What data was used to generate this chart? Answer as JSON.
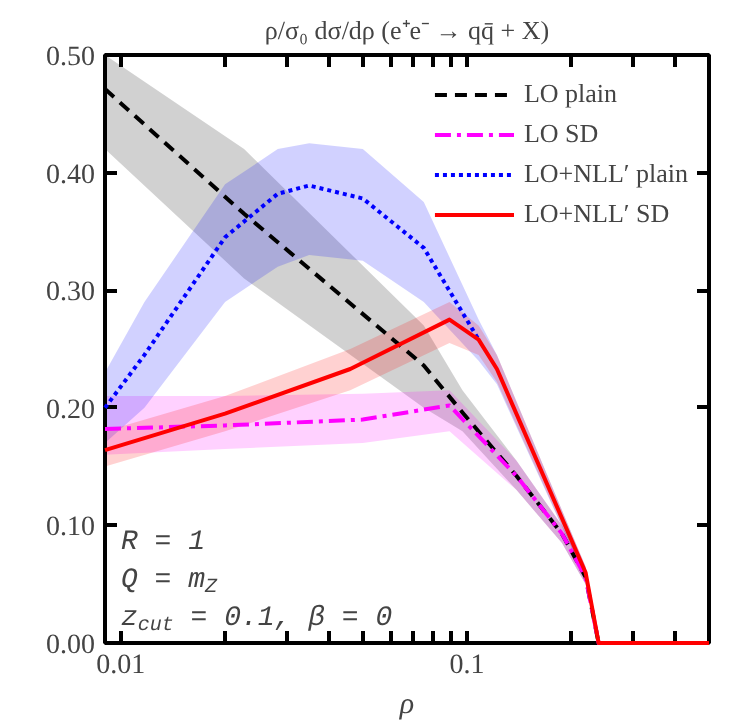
{
  "chart_data": {
    "type": "line",
    "title": "ρ/σ₀ dσ/dρ (e⁺e⁻ → qq̄ + X)",
    "xlabel": "ρ",
    "log": "x",
    "xlim": [
      0.009,
      0.5
    ],
    "ylim": [
      0,
      0.5
    ],
    "xticks": [
      {
        "value": 0.01,
        "label": "0.01"
      },
      {
        "value": 0.02,
        "label": null
      },
      {
        "value": 0.03,
        "label": null
      },
      {
        "value": 0.04,
        "label": null
      },
      {
        "value": 0.05,
        "label": null
      },
      {
        "value": 0.06,
        "label": null
      },
      {
        "value": 0.07,
        "label": null
      },
      {
        "value": 0.08,
        "label": null
      },
      {
        "value": 0.09,
        "label": null
      },
      {
        "value": 0.1,
        "label": "0.1"
      },
      {
        "value": 0.2,
        "label": null
      },
      {
        "value": 0.3,
        "label": null
      },
      {
        "value": 0.4,
        "label": null
      }
    ],
    "yticks": [
      {
        "value": 0,
        "label": "0.00"
      },
      {
        "value": 0.1,
        "label": "0.10"
      },
      {
        "value": 0.2,
        "label": "0.20"
      },
      {
        "value": 0.3,
        "label": "0.30"
      },
      {
        "value": 0.4,
        "label": "0.40"
      },
      {
        "value": 0.5,
        "label": "0.50"
      }
    ],
    "grid": false,
    "legend": "top right",
    "marker": "none",
    "annotations": [
      "R = 1",
      "Q = m$_{Z}$",
      "z$_{cut}$ = 0.1, β = 0"
    ],
    "series": [
      {
        "name": "LO plain",
        "color": "#000000",
        "line_style": "dashed",
        "x": [
          0.009,
          0.0227,
          0.075,
          0.097,
          0.139,
          0.188,
          0.22,
          0.24,
          0.5
        ],
        "values": [
          0.471,
          0.365,
          0.236,
          0.196,
          0.142,
          0.093,
          0.056,
          0,
          0
        ],
        "lower": [
          0.42,
          0.31,
          0.2,
          0.18,
          0.13,
          0.085,
          0.05,
          0,
          0
        ],
        "upper": [
          0.5,
          0.42,
          0.27,
          0.215,
          0.155,
          0.1,
          0.062,
          0,
          0
        ]
      },
      {
        "name": "LO SD",
        "color": "#ff00ff",
        "line_style": "dashdot",
        "x": [
          0.009,
          0.02,
          0.05,
          0.089,
          0.139,
          0.188,
          0.22,
          0.24,
          0.5
        ],
        "values": [
          0.182,
          0.185,
          0.19,
          0.202,
          0.142,
          0.093,
          0.056,
          0,
          0
        ],
        "lower": [
          0.16,
          0.165,
          0.17,
          0.18,
          0.13,
          0.085,
          0.05,
          0,
          0
        ],
        "upper": [
          0.21,
          0.21,
          0.212,
          0.215,
          0.155,
          0.1,
          0.062,
          0,
          0
        ]
      },
      {
        "name": "LO+NLL′ plain",
        "color": "#0000ff",
        "line_style": "dotted",
        "x": [
          0.009,
          0.0117,
          0.02,
          0.0284,
          0.035,
          0.05,
          0.075,
          0.108,
          0.122,
          0.22,
          0.24,
          0.5
        ],
        "values": [
          0.2,
          0.245,
          0.345,
          0.382,
          0.389,
          0.378,
          0.336,
          0.258,
          null,
          null,
          null,
          null
        ],
        "lower": [
          0.17,
          0.2,
          0.29,
          0.32,
          0.33,
          0.325,
          0.29,
          0.24,
          0.22,
          0.055,
          0,
          0
        ],
        "upper": [
          0.23,
          0.29,
          0.39,
          0.42,
          0.425,
          0.42,
          0.375,
          0.275,
          0.245,
          0.065,
          0,
          0
        ]
      },
      {
        "name": "LO+NLL′ SD",
        "color": "#ff0000",
        "line_style": "solid",
        "x": [
          0.009,
          0.02,
          0.046,
          0.089,
          0.108,
          0.122,
          0.22,
          0.24,
          0.5
        ],
        "values": [
          0.164,
          0.195,
          0.233,
          0.275,
          0.258,
          0.233,
          0.06,
          0,
          0
        ],
        "lower": [
          0.15,
          0.18,
          0.215,
          0.255,
          0.245,
          0.222,
          0.055,
          0,
          0
        ],
        "upper": [
          0.18,
          0.21,
          0.25,
          0.29,
          0.27,
          0.245,
          0.065,
          0,
          0
        ]
      }
    ]
  }
}
